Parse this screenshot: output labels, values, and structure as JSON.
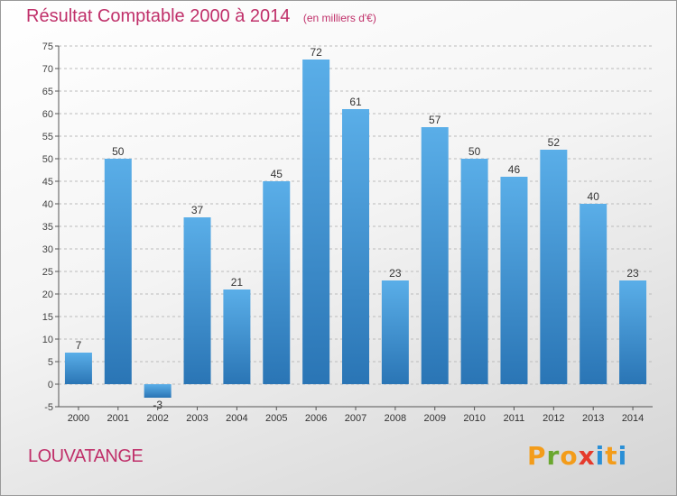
{
  "title": "Résultat Comptable 2000 à 2014",
  "unit": "(en milliers d'€)",
  "commune": "LOUVATANGE",
  "logo": "Proxiti",
  "colors": {
    "bar_top": "#5aaee8",
    "bar_bottom": "#2a75b5",
    "title": "#c0306a",
    "axis": "#555555",
    "grid": "#bbbbbb"
  },
  "chart_data": {
    "type": "bar",
    "categories": [
      "2000",
      "2001",
      "2002",
      "2003",
      "2004",
      "2005",
      "2006",
      "2007",
      "2008",
      "2009",
      "2010",
      "2011",
      "2012",
      "2013",
      "2014"
    ],
    "values": [
      7,
      50,
      -3,
      37,
      21,
      45,
      72,
      61,
      23,
      57,
      50,
      46,
      52,
      40,
      23
    ],
    "value_labels": [
      "7",
      "50",
      "-3",
      "37",
      "21",
      "45",
      "72",
      "61",
      "23",
      "57",
      "50",
      "46",
      "52",
      "40",
      "23"
    ],
    "ylim": [
      -5,
      75
    ],
    "yticks": [
      -5,
      0,
      5,
      10,
      15,
      20,
      25,
      30,
      35,
      40,
      45,
      50,
      55,
      60,
      65,
      70,
      75
    ],
    "grid": "horizontal dashed"
  }
}
